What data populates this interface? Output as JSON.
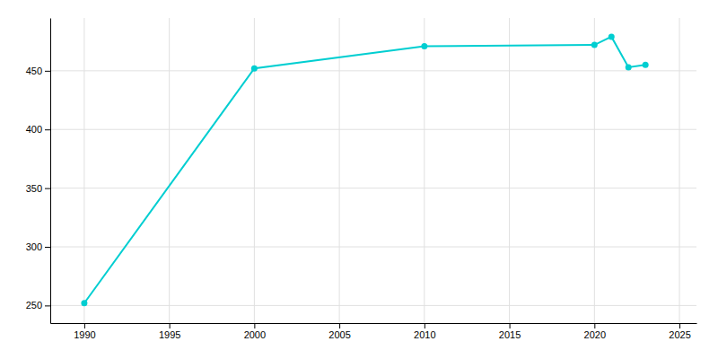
{
  "chart_data": {
    "type": "line",
    "x": [
      1990,
      2000,
      2010,
      2020,
      2021,
      2022,
      2023
    ],
    "values": [
      252,
      452,
      471,
      472,
      479,
      453,
      455
    ],
    "color": "#00CED1",
    "marker": "circle",
    "xlim": [
      1988,
      2026
    ],
    "ylim": [
      235,
      495
    ],
    "xticks": [
      1990,
      1995,
      2000,
      2005,
      2010,
      2015,
      2020,
      2025
    ],
    "yticks": [
      250,
      300,
      350,
      400,
      450
    ],
    "grid": true
  }
}
